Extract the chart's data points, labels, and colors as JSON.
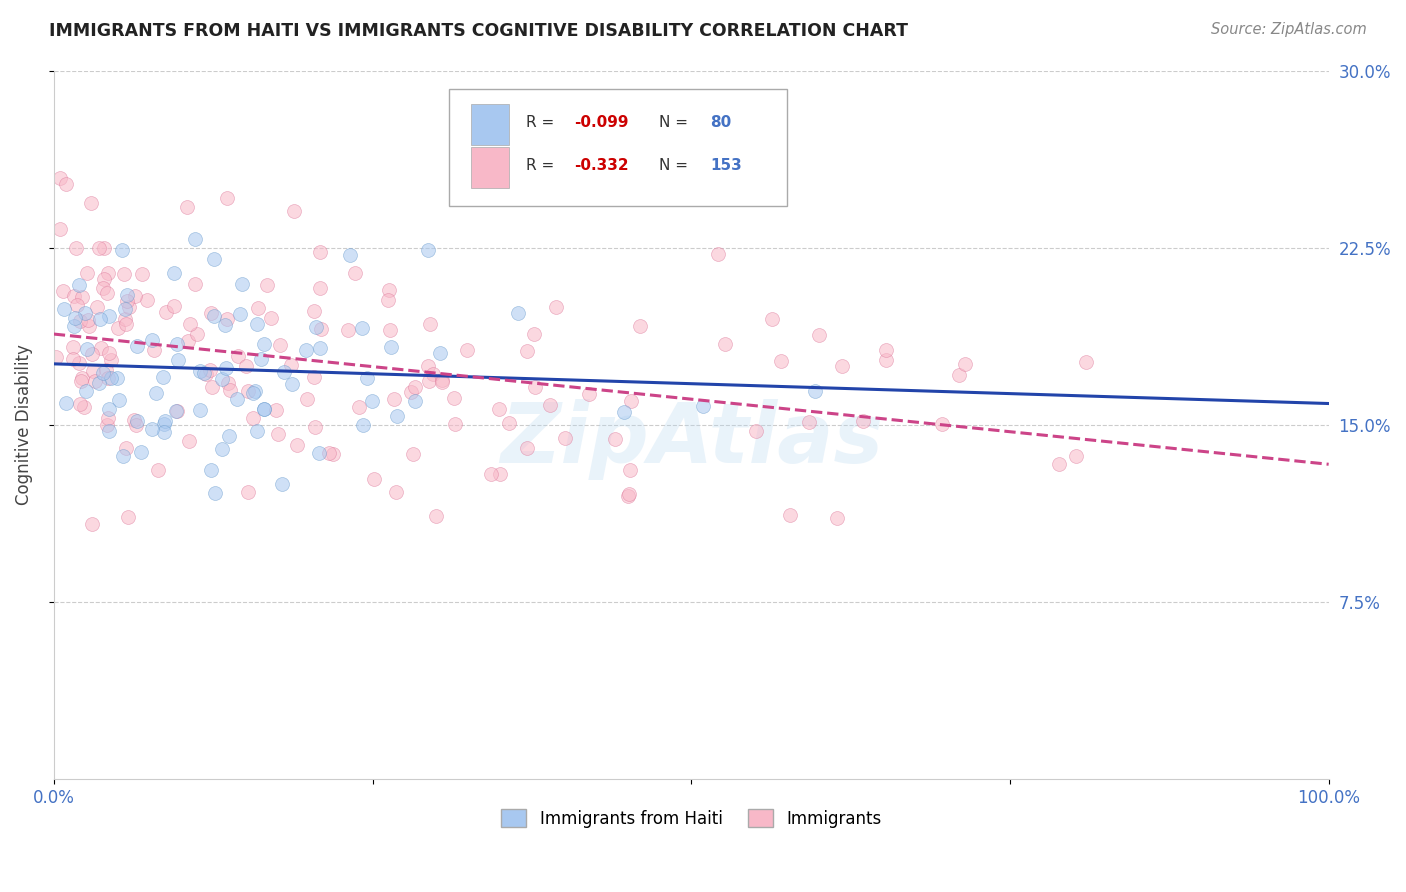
{
  "title": "IMMIGRANTS FROM HAITI VS IMMIGRANTS COGNITIVE DISABILITY CORRELATION CHART",
  "source": "Source: ZipAtlas.com",
  "ylabel": "Cognitive Disability",
  "watermark": "ZipAtlas",
  "legend_series1_label": "Immigrants from Haiti",
  "legend_series2_label": "Immigrants",
  "color_blue": "#A8C8F0",
  "color_blue_edge": "#6699CC",
  "color_pink": "#F8B8C8",
  "color_pink_edge": "#DD7799",
  "color_trendline_blue": "#2244AA",
  "color_trendline_pink": "#CC4488",
  "color_axis_ticks": "#4472C4",
  "color_R_value": "#CC0000",
  "color_N_value": "#4472C4",
  "color_title": "#222222",
  "color_source": "#888888",
  "color_grid": "#CCCCCC",
  "background_color": "#FFFFFF",
  "xlim": [
    0.0,
    1.0
  ],
  "ylim": [
    0.0,
    0.3
  ],
  "yticks": [
    0.075,
    0.15,
    0.225,
    0.3
  ],
  "ytick_labels": [
    "7.5%",
    "15.0%",
    "22.5%",
    "30.0%"
  ],
  "xticks": [
    0.0,
    0.25,
    0.5,
    0.75,
    1.0
  ],
  "xtick_labels": [
    "0.0%",
    "",
    "",
    "",
    "100.0%"
  ],
  "scatter_size": 100,
  "scatter_alpha": 0.55,
  "n1": 80,
  "n2": 153,
  "R1": -0.099,
  "R2": -0.332,
  "seed1": 42,
  "seed2": 77
}
